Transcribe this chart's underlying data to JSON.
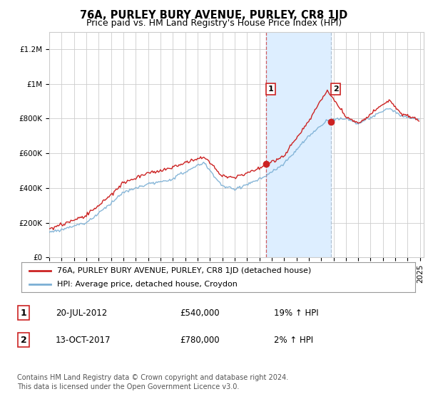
{
  "title": "76A, PURLEY BURY AVENUE, PURLEY, CR8 1JD",
  "subtitle": "Price paid vs. HM Land Registry's House Price Index (HPI)",
  "ylim": [
    0,
    1300000
  ],
  "yticks": [
    0,
    200000,
    400000,
    600000,
    800000,
    1000000,
    1200000
  ],
  "ytick_labels": [
    "£0",
    "£200K",
    "£400K",
    "£600K",
    "£800K",
    "£1M",
    "£1.2M"
  ],
  "sale1_year": 2012.55,
  "sale1_price": 540000,
  "sale2_year": 2017.8,
  "sale2_price": 780000,
  "hpi_color": "#7bafd4",
  "property_color": "#cc2222",
  "highlight_color": "#ddeeff",
  "vline1_color": "#cc4444",
  "vline2_color": "#aabbcc",
  "grid_color": "#cccccc",
  "bg_color": "#ffffff",
  "legend1_label": "76A, PURLEY BURY AVENUE, PURLEY, CR8 1JD (detached house)",
  "legend2_label": "HPI: Average price, detached house, Croydon",
  "table_row1": [
    "1",
    "20-JUL-2012",
    "£540,000",
    "19% ↑ HPI"
  ],
  "table_row2": [
    "2",
    "13-OCT-2017",
    "£780,000",
    "2% ↑ HPI"
  ],
  "footnote": "Contains HM Land Registry data © Crown copyright and database right 2024.\nThis data is licensed under the Open Government Licence v3.0.",
  "title_fontsize": 10.5,
  "subtitle_fontsize": 9,
  "tick_fontsize": 7.5,
  "legend_fontsize": 8,
  "table_fontsize": 8.5,
  "footnote_fontsize": 7
}
